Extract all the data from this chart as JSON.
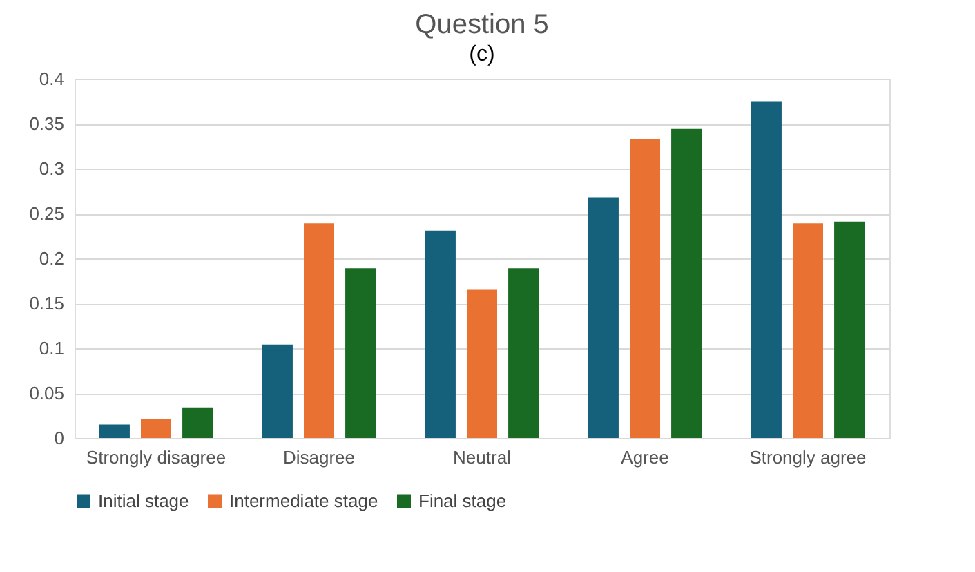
{
  "chart_data": {
    "type": "bar",
    "title": "Question 5",
    "annotations": [
      "(c)"
    ],
    "categories": [
      "Strongly disagree",
      "Disagree",
      "Neutral",
      "Agree",
      "Strongly agree"
    ],
    "series": [
      {
        "name": "Initial stage",
        "color": "#15607a",
        "values": [
          0.015,
          0.104,
          0.231,
          0.268,
          0.375
        ]
      },
      {
        "name": "Intermediate stage",
        "color": "#e97132",
        "values": [
          0.021,
          0.239,
          0.165,
          0.333,
          0.239
        ]
      },
      {
        "name": "Final stage",
        "color": "#196b24",
        "values": [
          0.034,
          0.189,
          0.189,
          0.344,
          0.241
        ]
      }
    ],
    "ylim": [
      0,
      0.4
    ],
    "yticks": [
      0,
      0.05,
      0.1,
      0.15,
      0.2,
      0.25,
      0.3,
      0.35,
      0.4
    ],
    "grid": "y",
    "legend": "bottom"
  }
}
